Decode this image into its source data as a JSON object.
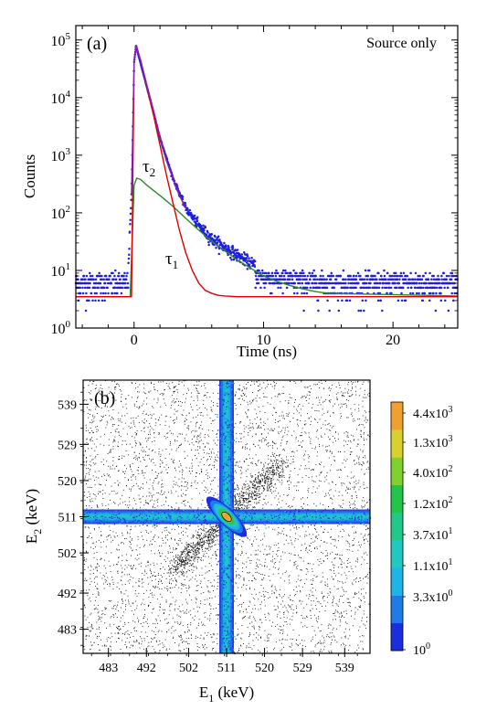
{
  "chart_data": [
    {
      "panel_label": "(a)",
      "type": "scatter",
      "annotation": "Source only",
      "xlabel": "Time (ns)",
      "ylabel": "Counts",
      "xlim": [
        -4.5,
        25
      ],
      "ylim_log10": [
        0,
        5.25
      ],
      "y_scale": "log",
      "x_ticks": [
        0,
        10,
        20
      ],
      "x_tick_labels": [
        "0",
        "10",
        "20"
      ],
      "y_ticks": [
        1,
        10,
        100,
        1000,
        10000,
        100000
      ],
      "y_tick_labels": [
        {
          "base": "10",
          "exp": "0"
        },
        {
          "base": "10",
          "exp": "1"
        },
        {
          "base": "10",
          "exp": "2"
        },
        {
          "base": "10",
          "exp": "3"
        },
        {
          "base": "10",
          "exp": "4"
        },
        {
          "base": "10",
          "exp": "5"
        }
      ],
      "series": [
        {
          "role": "measured counts",
          "color": "#1f1fe0",
          "style": "dots",
          "key_points": {
            "x": [
              -4.5,
              -0.5,
              -0.2,
              0.0,
              0.15,
              0.5,
              1.0,
              2.0,
              3.0,
              4.0,
              5.0,
              6.0,
              8.0,
              10.0,
              12.0,
              15.0,
              20.0,
              25.0
            ],
            "y": [
              6,
              6,
              200,
              40000,
              80000,
              40000,
              15000,
              2000,
              400,
              120,
              60,
              35,
              18,
              10,
              8,
              6,
              6,
              6
            ]
          }
        },
        {
          "role": "fit envelope",
          "color": "#8a1fb0",
          "style": "line",
          "x": [
            -0.2,
            0.0,
            0.15,
            0.5,
            1.0,
            1.5,
            2.0,
            2.5,
            3.0,
            3.5,
            4.0
          ],
          "y": [
            200,
            40000,
            80000,
            45000,
            16000,
            6000,
            2000,
            800,
            400,
            200,
            120
          ]
        },
        {
          "name_sub": "1",
          "name_base": "τ",
          "color": "#e00000",
          "style": "line",
          "x": [
            -4.5,
            -0.2,
            0.0,
            0.15,
            0.5,
            1.0,
            1.5,
            2.0,
            2.5,
            3.0,
            3.5,
            4.0,
            4.5,
            5.0,
            5.5,
            6.0,
            6.5,
            7.0,
            8.0,
            25.0
          ],
          "y": [
            3.5,
            3.5,
            40000,
            80000,
            45000,
            15000,
            5000,
            1500,
            450,
            150,
            50,
            20,
            10,
            6,
            4.5,
            4.0,
            3.7,
            3.6,
            3.5,
            3.5
          ]
        },
        {
          "name_sub": "2",
          "name_base": "τ",
          "color": "#2a8a2a",
          "style": "line",
          "x": [
            -4.5,
            -0.3,
            0.0,
            0.2,
            0.5,
            1.0,
            2.0,
            3.0,
            4.0,
            5.0,
            6.0,
            7.0,
            8.0,
            9.0,
            10.0,
            11.0,
            12.0,
            13.0,
            14.0,
            15.0,
            25.0
          ],
          "y": [
            3.5,
            3.5,
            300,
            400,
            380,
            300,
            200,
            130,
            80,
            50,
            32,
            22,
            15,
            11,
            8,
            6.5,
            5.5,
            4.8,
            4.3,
            4.0,
            3.6
          ]
        }
      ]
    },
    {
      "panel_label": "(b)",
      "type": "heatmap",
      "xlabel": {
        "base": "E",
        "sub": "1",
        "rest": " (keV)"
      },
      "ylabel": {
        "base": "E",
        "sub": "2",
        "rest": " (keV)"
      },
      "xlim": [
        477,
        545
      ],
      "ylim": [
        477,
        545
      ],
      "x_ticks": [
        483,
        492,
        502,
        511,
        520,
        529,
        539
      ],
      "y_ticks": [
        483,
        492,
        502,
        511,
        520,
        529,
        539
      ],
      "center": [
        511,
        511
      ],
      "colorbar": {
        "scale": "log",
        "range": [
          1,
          10000
        ],
        "colors": [
          "#1a2ee0",
          "#1e7be8",
          "#1fb4e8",
          "#21c8c0",
          "#22c88a",
          "#22c44a",
          "#80d030",
          "#d8d030",
          "#f0a030"
        ],
        "labels": [
          {
            "mantissa": "4.4x10",
            "exp": "3"
          },
          {
            "mantissa": "1.3x10",
            "exp": "3"
          },
          {
            "mantissa": "4.0x10",
            "exp": "2"
          },
          {
            "mantissa": "1.2x10",
            "exp": "2"
          },
          {
            "mantissa": "3.7x10",
            "exp": "1"
          },
          {
            "mantissa": "1.1x10",
            "exp": "1"
          },
          {
            "mantissa": "3.3x10",
            "exp": "0"
          },
          {
            "mantissa": "10",
            "exp": "0"
          }
        ]
      }
    }
  ]
}
